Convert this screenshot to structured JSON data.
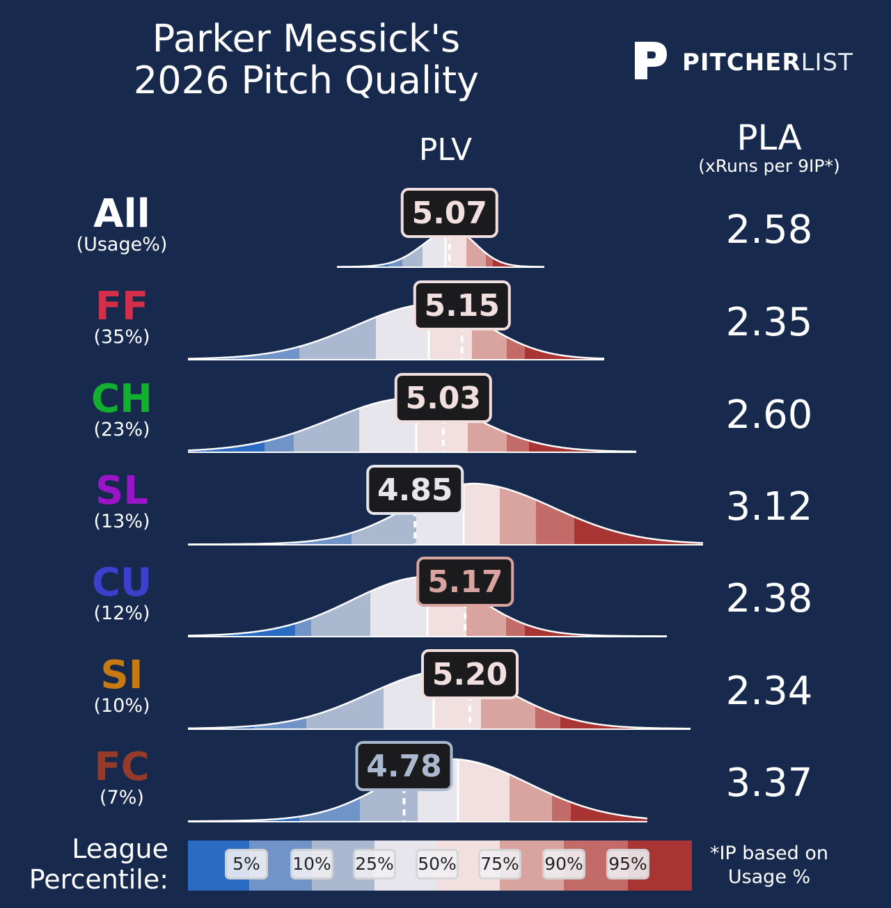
{
  "title_line1": "Parker Messick's",
  "title_line2": "2026 Pitch Quality",
  "logo": {
    "bold": "PITCHER",
    "light": "LIST"
  },
  "headers": {
    "plv": "PLV",
    "pla": "PLA",
    "pla_sub": "(xRuns per 9IP*)"
  },
  "legend": {
    "label_line1": "League",
    "label_line2": "Percentile:",
    "percentiles": [
      "5%",
      "10%",
      "25%",
      "50%",
      "75%",
      "90%",
      "95%"
    ],
    "colors": [
      "#2a6cc4",
      "#7093c8",
      "#aab8d0",
      "#e6e6ec",
      "#f2dfdf",
      "#d9a4a0",
      "#c26b68",
      "#a83434"
    ]
  },
  "footnote_line1": "*IP based on",
  "footnote_line2": "Usage %",
  "chart_data": {
    "type": "distribution",
    "rows": [
      {
        "pitch": "All",
        "usage": "(Usage%)",
        "plv": "5.07",
        "pla": "2.58",
        "label_color": "#ffffff",
        "badge_text_color": "#f2dfdf",
        "badge_border": "#f2dfdf"
      },
      {
        "pitch": "FF",
        "usage": "(35%)",
        "plv": "5.15",
        "pla": "2.35",
        "label_color": "#d42f4a",
        "badge_text_color": "#f2dfdf",
        "badge_border": "#f2dfdf"
      },
      {
        "pitch": "CH",
        "usage": "(23%)",
        "plv": "5.03",
        "pla": "2.60",
        "label_color": "#12b02e",
        "badge_text_color": "#f2dfdf",
        "badge_border": "#f2dfdf"
      },
      {
        "pitch": "SL",
        "usage": "(13%)",
        "plv": "4.85",
        "pla": "3.12",
        "label_color": "#9a15c8",
        "badge_text_color": "#e6e6ec",
        "badge_border": "#e6e6ec"
      },
      {
        "pitch": "CU",
        "usage": "(12%)",
        "plv": "5.17",
        "pla": "2.38",
        "label_color": "#3c3fcc",
        "badge_text_color": "#d9a4a0",
        "badge_border": "#d9a4a0"
      },
      {
        "pitch": "SI",
        "usage": "(10%)",
        "plv": "5.20",
        "pla": "2.34",
        "label_color": "#c87a10",
        "badge_text_color": "#f2dfdf",
        "badge_border": "#f2dfdf"
      },
      {
        "pitch": "FC",
        "usage": "(7%)",
        "plv": "4.78",
        "pla": "3.37",
        "label_color": "#963a2a",
        "badge_text_color": "#aab8d0",
        "badge_border": "#aab8d0"
      }
    ]
  }
}
